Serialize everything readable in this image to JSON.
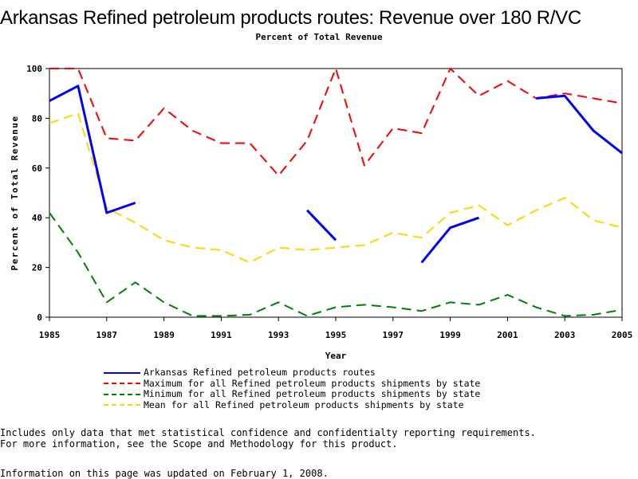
{
  "page": {
    "title": "Arkansas Refined petroleum products routes: Revenue over 180 R/VC",
    "subtitle": "Percent of Total Revenue",
    "footnote_1": "Includes only data that met statistical confidence and confidentialty reporting requirements.",
    "footnote_2": "For more information, see the Scope and Methodology for this product.",
    "updated": "Information on this page was updated on February 1, 2008."
  },
  "chart_data": {
    "type": "line",
    "xlabel": "Year",
    "ylabel": "Percent of Total Revenue",
    "xlim": [
      1985,
      2005
    ],
    "ylim": [
      0,
      100
    ],
    "x_ticks": [
      "1985",
      "1987",
      "1989",
      "1991",
      "1993",
      "1995",
      "1997",
      "1999",
      "2001",
      "2003",
      "2005"
    ],
    "y_ticks": [
      "0",
      "20",
      "40",
      "60",
      "80",
      "100"
    ],
    "grid": false,
    "legend_position": "bottom",
    "series": [
      {
        "name": "Arkansas Refined petroleum products routes",
        "color": "#0000ff",
        "style": "solid",
        "points": [
          [
            1985,
            87
          ],
          [
            1986,
            93
          ],
          [
            1987,
            42
          ],
          [
            1988,
            46
          ],
          [
            1989,
            null
          ],
          [
            1990,
            null
          ],
          [
            1991,
            null
          ],
          [
            1992,
            null
          ],
          [
            1993,
            null
          ],
          [
            1994,
            43
          ],
          [
            1995,
            31
          ],
          [
            1996,
            null
          ],
          [
            1997,
            null
          ],
          [
            1998,
            22
          ],
          [
            1999,
            36
          ],
          [
            2000,
            40
          ],
          [
            2001,
            null
          ],
          [
            2002,
            88
          ],
          [
            2003,
            89
          ],
          [
            2004,
            75
          ],
          [
            2005,
            66
          ]
        ]
      },
      {
        "name": "Maximum for all Refined petroleum products shipments by state",
        "color": "#ff0000",
        "style": "dashed",
        "points": [
          [
            1985,
            100
          ],
          [
            1986,
            100
          ],
          [
            1987,
            72
          ],
          [
            1988,
            71
          ],
          [
            1989,
            84
          ],
          [
            1990,
            75
          ],
          [
            1991,
            70
          ],
          [
            1992,
            70
          ],
          [
            1993,
            57
          ],
          [
            1994,
            71
          ],
          [
            1995,
            100
          ],
          [
            1996,
            61
          ],
          [
            1997,
            76
          ],
          [
            1998,
            74
          ],
          [
            1999,
            100
          ],
          [
            2000,
            89
          ],
          [
            2001,
            95
          ],
          [
            2002,
            88
          ],
          [
            2003,
            90
          ],
          [
            2004,
            88
          ],
          [
            2005,
            86
          ]
        ]
      },
      {
        "name": "Minimum for all Refined petroleum products shipments by state",
        "color": "#008000",
        "style": "dashed",
        "points": [
          [
            1985,
            42
          ],
          [
            1986,
            26
          ],
          [
            1987,
            6
          ],
          [
            1988,
            14
          ],
          [
            1989,
            6
          ],
          [
            1990,
            0.5
          ],
          [
            1991,
            0.5
          ],
          [
            1992,
            1
          ],
          [
            1993,
            6
          ],
          [
            1994,
            0.5
          ],
          [
            1995,
            4
          ],
          [
            1996,
            5
          ],
          [
            1997,
            4
          ],
          [
            1998,
            2.5
          ],
          [
            1999,
            6
          ],
          [
            2000,
            5
          ],
          [
            2001,
            9
          ],
          [
            2002,
            4
          ],
          [
            2003,
            0.5
          ],
          [
            2004,
            1
          ],
          [
            2005,
            3
          ]
        ]
      },
      {
        "name": "Mean for all Refined petroleum products shipments by state",
        "color": "#ffd700",
        "style": "dashed",
        "points": [
          [
            1985,
            78
          ],
          [
            1986,
            82
          ],
          [
            1987,
            44
          ],
          [
            1988,
            38
          ],
          [
            1989,
            31
          ],
          [
            1990,
            28
          ],
          [
            1991,
            27
          ],
          [
            1992,
            22
          ],
          [
            1993,
            28
          ],
          [
            1994,
            27
          ],
          [
            1995,
            28
          ],
          [
            1996,
            29
          ],
          [
            1997,
            34
          ],
          [
            1998,
            32
          ],
          [
            1999,
            42
          ],
          [
            2000,
            45
          ],
          [
            2001,
            37
          ],
          [
            2002,
            43
          ],
          [
            2003,
            48
          ],
          [
            2004,
            39
          ],
          [
            2005,
            36
          ]
        ]
      }
    ]
  }
}
